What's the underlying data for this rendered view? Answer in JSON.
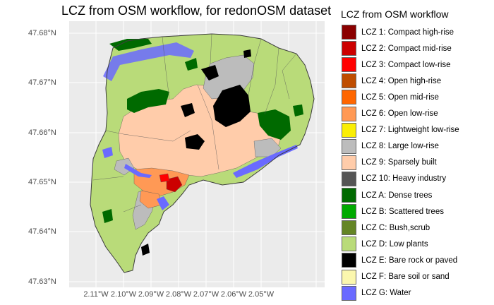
{
  "title": "LCZ from OSM workflow, for  redonOSM dataset",
  "legend": {
    "title": "LCZ from OSM workflow",
    "items": [
      {
        "label": "LCZ 1: Compact high-rise",
        "color": "#8B0000"
      },
      {
        "label": "LCZ 2: Compact mid-rise",
        "color": "#CC0000"
      },
      {
        "label": "LCZ 3: Compact low-rise",
        "color": "#FF0000"
      },
      {
        "label": "LCZ 4: Open high-rise",
        "color": "#BF4D00"
      },
      {
        "label": "LCZ 5: Open mid-rise",
        "color": "#FF6600"
      },
      {
        "label": "LCZ 6: Open low-rise",
        "color": "#FF9955"
      },
      {
        "label": "LCZ 7: Lightweight low-rise",
        "color": "#FAEE05"
      },
      {
        "label": "LCZ 8: Large low-rise",
        "color": "#BCBCBC"
      },
      {
        "label": "LCZ 9: Sparsely built",
        "color": "#FFCCAA"
      },
      {
        "label": "LCZ 10: Heavy industry",
        "color": "#555555"
      },
      {
        "label": "LCZ A: Dense trees",
        "color": "#006A00"
      },
      {
        "label": "LCZ B: Scattered trees",
        "color": "#00AA00"
      },
      {
        "label": "LCZ C: Bush,scrub",
        "color": "#648525"
      },
      {
        "label": "LCZ D: Low plants",
        "color": "#B9DB79"
      },
      {
        "label": "LCZ E: Bare rock or paved",
        "color": "#000000"
      },
      {
        "label": "LCZ F: Bare soil or sand",
        "color": "#FBF7AE"
      },
      {
        "label": "LCZ G: Water",
        "color": "#6A6AFF"
      }
    ]
  },
  "axes": {
    "y_ticks": [
      "47.68°N",
      "47.67°N",
      "47.66°N",
      "47.65°N",
      "47.64°N",
      "47.63°N"
    ],
    "x_ticks": [
      "2.11°W",
      "2.10°W",
      "2.09°W",
      "2.08°W",
      "2.07°W",
      "2.06°W",
      "2.05°W"
    ]
  },
  "colors": {
    "panel_background": "#EBEBEB",
    "grid": "#FFFFFF",
    "tick_text": "#4D4D4D"
  }
}
